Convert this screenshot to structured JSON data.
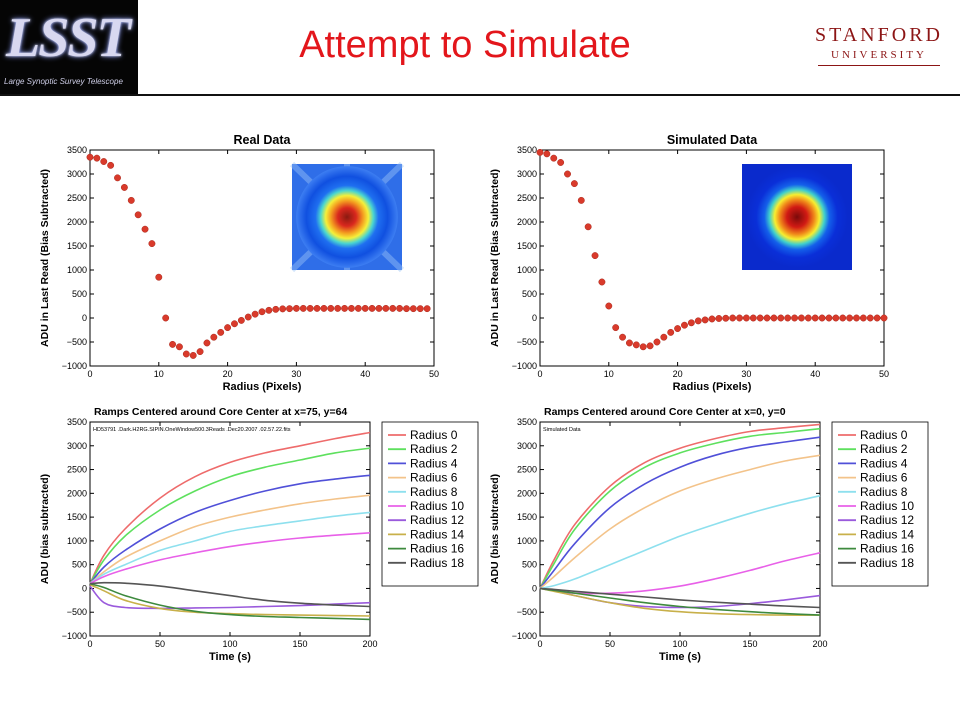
{
  "header": {
    "title": "Attempt to Simulate",
    "logo_text": "LSST",
    "logo_subtitle": "Large Synoptic Survey Telescope",
    "university_line1": "STANFORD",
    "university_line2": "UNIVERSITY"
  },
  "chart_data": [
    {
      "type": "scatter",
      "title": "Real Data",
      "xlabel": "Radius (Pixels)",
      "ylabel": "ADU in Last Read (Bias Subtracted)",
      "xlim": [
        0,
        50
      ],
      "ylim": [
        -1000,
        3500
      ],
      "xticks": [
        0,
        10,
        20,
        30,
        40,
        50
      ],
      "yticks": [
        -1000,
        -500,
        0,
        500,
        1000,
        1500,
        2000,
        2500,
        3000,
        3500
      ],
      "marker_color": "#d93a2b",
      "inset": "radial-image-real",
      "x": [
        0,
        1,
        2,
        3,
        4,
        5,
        6,
        7,
        8,
        9,
        10,
        11,
        12,
        13,
        14,
        15,
        16,
        17,
        18,
        19,
        20,
        21,
        22,
        23,
        24,
        25,
        26,
        27,
        28,
        29,
        30,
        31,
        32,
        33,
        34,
        35,
        36,
        37,
        38,
        39,
        40,
        41,
        42,
        43,
        44,
        45,
        46,
        47,
        48,
        49
      ],
      "y": [
        3350,
        3330,
        3260,
        3180,
        2920,
        2720,
        2450,
        2150,
        1850,
        1550,
        850,
        0,
        -550,
        -600,
        -750,
        -780,
        -700,
        -520,
        -400,
        -300,
        -200,
        -120,
        -50,
        20,
        80,
        130,
        160,
        180,
        190,
        195,
        200,
        200,
        200,
        200,
        200,
        200,
        200,
        200,
        200,
        200,
        200,
        200,
        200,
        200,
        200,
        200,
        195,
        195,
        195,
        195
      ]
    },
    {
      "type": "scatter",
      "title": "Simulated Data",
      "xlabel": "Radius (Pixels)",
      "ylabel": "ADU in Last Read (Bias Subtracted)",
      "xlim": [
        0,
        50
      ],
      "ylim": [
        -1000,
        3500
      ],
      "xticks": [
        0,
        10,
        20,
        30,
        40,
        50
      ],
      "yticks": [
        -1000,
        -500,
        0,
        500,
        1000,
        1500,
        2000,
        2500,
        3000,
        3500
      ],
      "marker_color": "#d93a2b",
      "inset": "radial-image-simulated",
      "x": [
        0,
        1,
        2,
        3,
        4,
        5,
        6,
        7,
        8,
        9,
        10,
        11,
        12,
        13,
        14,
        15,
        16,
        17,
        18,
        19,
        20,
        21,
        22,
        23,
        24,
        25,
        26,
        27,
        28,
        29,
        30,
        31,
        32,
        33,
        34,
        35,
        36,
        37,
        38,
        39,
        40,
        41,
        42,
        43,
        44,
        45,
        46,
        47,
        48,
        49,
        50
      ],
      "y": [
        3450,
        3420,
        3330,
        3240,
        3000,
        2800,
        2450,
        1900,
        1300,
        750,
        250,
        -200,
        -400,
        -520,
        -560,
        -600,
        -580,
        -500,
        -400,
        -300,
        -220,
        -150,
        -100,
        -60,
        -40,
        -20,
        -10,
        -5,
        0,
        0,
        0,
        0,
        0,
        0,
        0,
        0,
        0,
        0,
        0,
        0,
        0,
        0,
        0,
        0,
        0,
        0,
        0,
        0,
        0,
        0,
        0
      ]
    },
    {
      "type": "line",
      "title": "Ramps Centered around Core Center at x=75, y=64",
      "annotation": "HD53791 .Dark.H2RG.SIPIN.OneWindow500.3Reads .Dec20.2007 .02.57.22.fits",
      "xlabel": "Time (s)",
      "ylabel": "ADU (bias subtracted)",
      "xlim": [
        0,
        200
      ],
      "ylim": [
        -1000,
        3500
      ],
      "xticks": [
        0,
        50,
        100,
        150,
        200
      ],
      "yticks": [
        -1000,
        -500,
        0,
        500,
        1000,
        1500,
        2000,
        2500,
        3000,
        3500
      ],
      "legend_position": "right",
      "x": [
        0,
        10,
        25,
        50,
        75,
        100,
        125,
        150,
        175,
        200
      ],
      "series": [
        {
          "name": "Radius 0",
          "color": "#ee6b6b",
          "values": [
            100,
            700,
            1250,
            1900,
            2350,
            2650,
            2850,
            3000,
            3150,
            3280
          ]
        },
        {
          "name": "Radius 2",
          "color": "#5ee05e",
          "values": [
            100,
            600,
            1100,
            1650,
            2050,
            2350,
            2550,
            2700,
            2850,
            2950
          ]
        },
        {
          "name": "Radius 4",
          "color": "#5050d8",
          "values": [
            100,
            450,
            800,
            1250,
            1600,
            1850,
            2050,
            2200,
            2300,
            2380
          ]
        },
        {
          "name": "Radius 6",
          "color": "#f3c38a",
          "values": [
            100,
            350,
            650,
            1000,
            1300,
            1500,
            1650,
            1780,
            1880,
            1960
          ]
        },
        {
          "name": "Radius 8",
          "color": "#8ee0ee",
          "values": [
            100,
            300,
            500,
            800,
            1000,
            1200,
            1320,
            1420,
            1520,
            1600
          ]
        },
        {
          "name": "Radius 10",
          "color": "#e860e8",
          "values": [
            100,
            250,
            400,
            600,
            750,
            880,
            980,
            1060,
            1120,
            1170
          ]
        },
        {
          "name": "Radius 12",
          "color": "#9a5adc",
          "values": [
            50,
            -300,
            -400,
            -420,
            -410,
            -400,
            -380,
            -360,
            -330,
            -300
          ]
        },
        {
          "name": "Radius 14",
          "color": "#c8b04a",
          "values": [
            80,
            -50,
            -250,
            -420,
            -500,
            -530,
            -550,
            -560,
            -570,
            -580
          ]
        },
        {
          "name": "Radius 16",
          "color": "#3e8a3e",
          "values": [
            100,
            20,
            -150,
            -350,
            -480,
            -550,
            -590,
            -610,
            -630,
            -650
          ]
        },
        {
          "name": "Radius 18",
          "color": "#555555",
          "values": [
            100,
            120,
            110,
            50,
            -50,
            -150,
            -250,
            -310,
            -350,
            -380
          ]
        }
      ]
    },
    {
      "type": "line",
      "title": "Ramps Centered around Core Center at x=0, y=0",
      "annotation": "Simulated Data",
      "xlabel": "Time (s)",
      "ylabel": "ADU (bias subtracted)",
      "xlim": [
        0,
        200
      ],
      "ylim": [
        -1000,
        3500
      ],
      "xticks": [
        0,
        50,
        100,
        150,
        200
      ],
      "yticks": [
        -1000,
        -500,
        0,
        500,
        1000,
        1500,
        2000,
        2500,
        3000,
        3500
      ],
      "legend_position": "right",
      "x": [
        0,
        10,
        25,
        50,
        75,
        100,
        125,
        150,
        175,
        200
      ],
      "series": [
        {
          "name": "Radius 0",
          "color": "#ee6b6b",
          "values": [
            0,
            600,
            1350,
            2150,
            2650,
            2950,
            3150,
            3300,
            3380,
            3450
          ]
        },
        {
          "name": "Radius 2",
          "color": "#5ee05e",
          "values": [
            0,
            520,
            1250,
            2050,
            2550,
            2850,
            3050,
            3200,
            3280,
            3360
          ]
        },
        {
          "name": "Radius 4",
          "color": "#5050d8",
          "values": [
            0,
            380,
            950,
            1700,
            2200,
            2550,
            2800,
            2970,
            3080,
            3180
          ]
        },
        {
          "name": "Radius 6",
          "color": "#f3c38a",
          "values": [
            0,
            250,
            650,
            1250,
            1700,
            2050,
            2300,
            2500,
            2680,
            2800
          ]
        },
        {
          "name": "Radius 8",
          "color": "#8ee0ee",
          "values": [
            0,
            60,
            200,
            500,
            800,
            1100,
            1350,
            1580,
            1780,
            1950
          ]
        },
        {
          "name": "Radius 10",
          "color": "#e860e8",
          "values": [
            0,
            -50,
            -100,
            -100,
            -50,
            50,
            200,
            380,
            580,
            750
          ]
        },
        {
          "name": "Radius 12",
          "color": "#9a5adc",
          "values": [
            0,
            -50,
            -150,
            -300,
            -380,
            -400,
            -380,
            -320,
            -240,
            -150
          ]
        },
        {
          "name": "Radius 14",
          "color": "#c8b04a",
          "values": [
            0,
            -60,
            -150,
            -300,
            -420,
            -490,
            -530,
            -550,
            -560,
            -560
          ]
        },
        {
          "name": "Radius 16",
          "color": "#3e8a3e",
          "values": [
            0,
            -40,
            -100,
            -200,
            -300,
            -380,
            -440,
            -490,
            -530,
            -560
          ]
        },
        {
          "name": "Radius 18",
          "color": "#555555",
          "values": [
            0,
            -20,
            -60,
            -120,
            -180,
            -240,
            -290,
            -330,
            -370,
            -400
          ]
        }
      ]
    }
  ]
}
